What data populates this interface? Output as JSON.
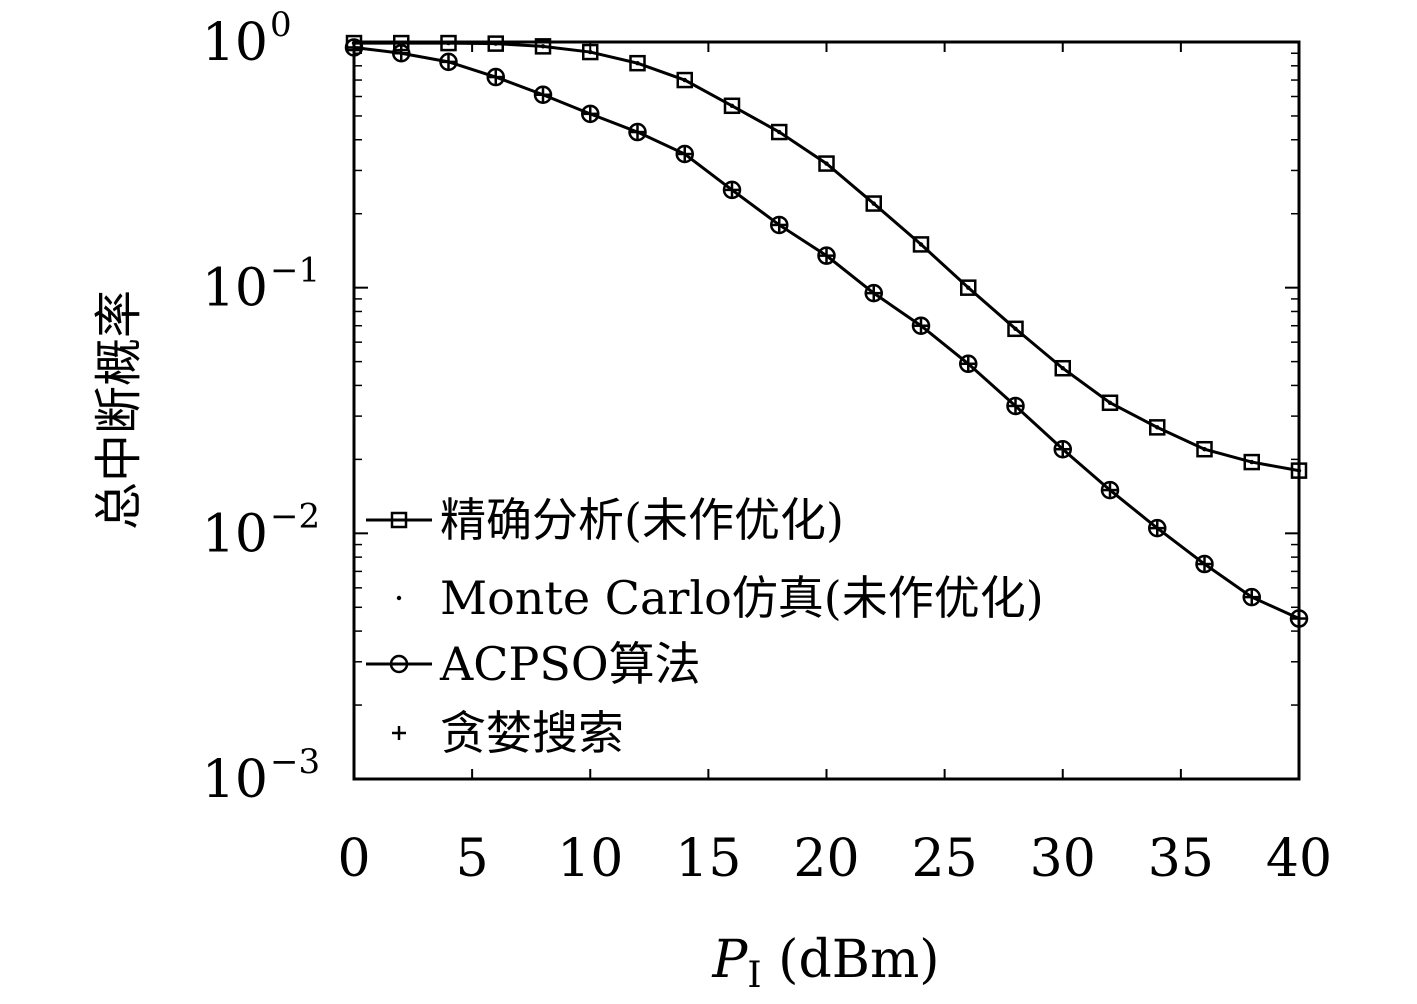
{
  "chart_data": {
    "type": "line",
    "xlabel": {
      "symbol": "P",
      "subscript": "I",
      "unit": "(dBm)"
    },
    "ylabel": "总中断概率",
    "xlim": [
      0,
      40
    ],
    "ylim": [
      0.001,
      1
    ],
    "yscale": "log",
    "xticks": [
      "0",
      "5",
      "10",
      "15",
      "20",
      "25",
      "30",
      "35",
      "40"
    ],
    "yticks": [
      {
        "base": "10",
        "exp": "0"
      },
      {
        "base": "10",
        "exp": "−1"
      },
      {
        "base": "10",
        "exp": "−2"
      },
      {
        "base": "10",
        "exp": "−3"
      }
    ],
    "grid": false,
    "legend_position": "lower-left",
    "legend": [
      {
        "label": "精确分析(未作优化)",
        "style": "line-square"
      },
      {
        "label": "Monte Carlo仿真(未作优化)",
        "style": "dot"
      },
      {
        "label": "ACPSO算法",
        "style": "line-circle"
      },
      {
        "label": "贪婪搜索",
        "style": "plus"
      }
    ],
    "x": [
      0,
      2,
      4,
      6,
      8,
      10,
      12,
      14,
      16,
      18,
      20,
      22,
      24,
      26,
      28,
      30,
      32,
      34,
      36,
      38,
      40
    ],
    "series": [
      {
        "name": "精确分析(未作优化)",
        "marker": "square",
        "line": true,
        "values": [
          0.99,
          0.99,
          0.99,
          0.985,
          0.96,
          0.91,
          0.82,
          0.7,
          0.55,
          0.43,
          0.32,
          0.22,
          0.15,
          0.1,
          0.068,
          0.047,
          0.034,
          0.027,
          0.022,
          0.0195,
          0.018
        ]
      },
      {
        "name": "Monte Carlo仿真(未作优化)",
        "marker": "dot",
        "line": false,
        "values": [
          0.99,
          0.99,
          0.99,
          0.985,
          0.96,
          0.91,
          0.82,
          0.7,
          0.55,
          0.43,
          0.32,
          0.22,
          0.15,
          0.1,
          0.068,
          0.047,
          0.034,
          0.027,
          0.022,
          0.0195,
          0.018
        ]
      },
      {
        "name": "ACPSO算法",
        "marker": "circle",
        "line": true,
        "values": [
          0.95,
          0.9,
          0.83,
          0.72,
          0.61,
          0.51,
          0.43,
          0.35,
          0.25,
          0.18,
          0.135,
          0.095,
          0.07,
          0.049,
          0.033,
          0.022,
          0.015,
          0.0105,
          0.0075,
          0.0055,
          0.0045
        ]
      },
      {
        "name": "贪婪搜索",
        "marker": "plus",
        "line": false,
        "values": [
          0.95,
          0.9,
          0.83,
          0.72,
          0.61,
          0.51,
          0.43,
          0.35,
          0.25,
          0.18,
          0.135,
          0.095,
          0.07,
          0.049,
          0.033,
          0.022,
          0.015,
          0.0105,
          0.0075,
          0.0055,
          0.0045
        ]
      }
    ]
  }
}
